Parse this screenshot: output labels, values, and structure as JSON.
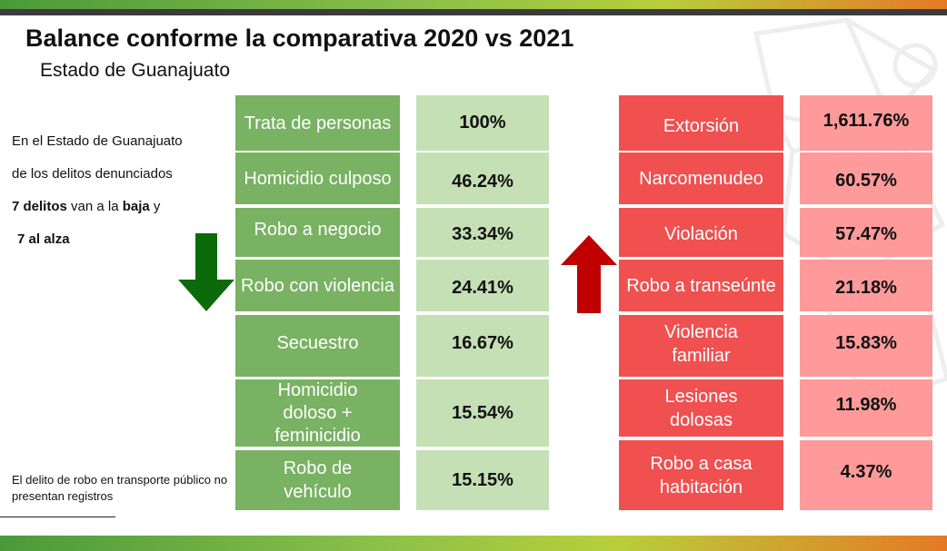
{
  "header": {
    "title": "Balance conforme la comparativa 2020 vs 2021",
    "subtitle": "Estado de Guanajuato"
  },
  "sidebar": {
    "line1": "En el Estado de Guanajuato",
    "line2": "de los delitos denunciados",
    "line3_bold1": "7 delitos",
    "line3_mid": " van a la ",
    "line3_bold2": "baja",
    "line3_end": " y",
    "line4_start": "7 al ",
    "line4_bold": "alza",
    "note": "El delito de robo en transporte público no presentan registros"
  },
  "decrease": {
    "arrow_color": "#0b6b0b",
    "label_color": "#78b262",
    "value_color": "#c5e0b4",
    "items": [
      {
        "label": "Trata de personas",
        "value": "100%"
      },
      {
        "label": "Homicidio culposo",
        "value": "46.24%"
      },
      {
        "label": "Robo a negocio",
        "value": "33.34%"
      },
      {
        "label": "Robo con violencia",
        "value": "24.41%"
      },
      {
        "label": "Secuestro",
        "value": "16.67%"
      },
      {
        "label": "Homicidio doloso + feminicidio",
        "value": "15.54%"
      },
      {
        "label": "Robo de vehículo",
        "value": "15.15%"
      }
    ]
  },
  "increase": {
    "arrow_color": "#c00000",
    "label_color": "#f05050",
    "value_color": "#ff9a9a",
    "items": [
      {
        "label": "Extorsión",
        "value": "1,611.76%"
      },
      {
        "label": "Narcomenudeo",
        "value": "60.57%"
      },
      {
        "label": "Violación",
        "value": "57.47%"
      },
      {
        "label": "Robo a transeúnte",
        "value": "21.18%"
      },
      {
        "label": "Violencia familiar",
        "value": "15.83%"
      },
      {
        "label": "Lesiones dolosas",
        "value": "11.98%"
      },
      {
        "label": "Robo a casa habitación",
        "value": "4.37%"
      }
    ]
  }
}
